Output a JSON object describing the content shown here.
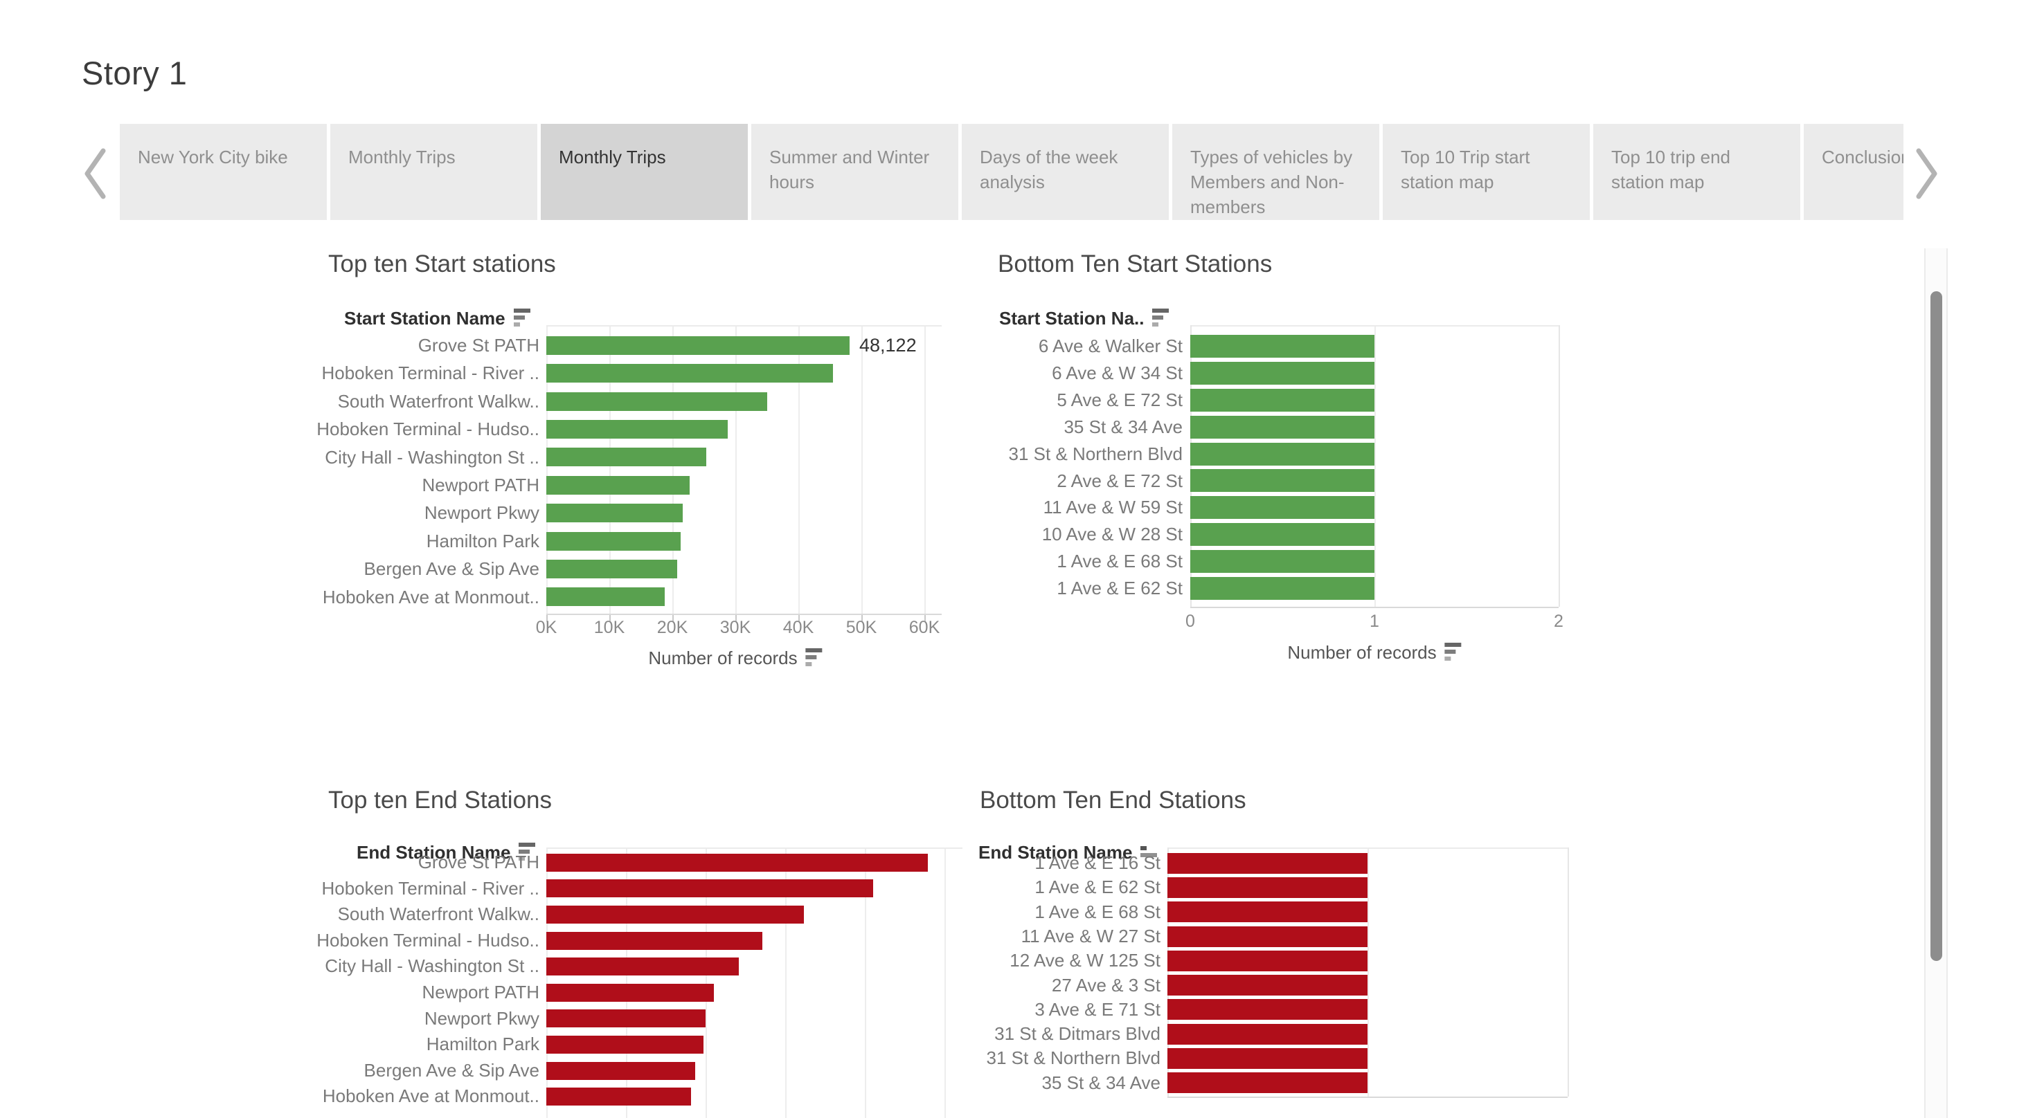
{
  "page": {
    "title": "Story 1"
  },
  "nav": {
    "prev_icon": "chevron-left",
    "next_icon": "chevron-right",
    "tabs": [
      {
        "label": "New York City bike",
        "selected": false
      },
      {
        "label": "Monthly Trips",
        "selected": false
      },
      {
        "label": "Monthly Trips",
        "selected": true
      },
      {
        "label": "Summer and Winter hours",
        "selected": false
      },
      {
        "label": "Days of the week analysis",
        "selected": false
      },
      {
        "label": "Types of vehicles by Members and Non-members",
        "selected": false
      },
      {
        "label": "Top 10 Trip start station map",
        "selected": false
      },
      {
        "label": "Top 10 trip end station map",
        "selected": false
      },
      {
        "label": "Conclusion",
        "selected": false
      }
    ]
  },
  "colors": {
    "green": "#59a14f",
    "red": "#b00e1a",
    "tab_bg": "#ebebeb",
    "tab_selected_bg": "#d4d4d4"
  },
  "chart_data": [
    {
      "type": "bar",
      "orientation": "horizontal",
      "title": "Top ten Start stations",
      "column_header": "Start Station Name",
      "header_sort_icon": "sort-descending",
      "categories": [
        "Grove St PATH",
        "Hoboken Terminal - River ..",
        "South Waterfront Walkw..",
        "Hoboken Terminal - Hudso..",
        "City Hall - Washington St ..",
        "Newport PATH",
        "Newport Pkwy",
        "Hamilton Park",
        "Bergen Ave & Sip Ave",
        "Hoboken Ave at Monmout.."
      ],
      "values": [
        48122,
        45500,
        35000,
        28800,
        25400,
        22700,
        21700,
        21300,
        20800,
        18800
      ],
      "value_labels": [
        "48,122",
        "",
        "",
        "",
        "",
        "",
        "",
        "",
        "",
        ""
      ],
      "xlabel": "Number of records",
      "xlabel_sort_icon": "sort-descending",
      "x_ticks": [
        "0K",
        "10K",
        "20K",
        "30K",
        "40K",
        "50K",
        "60K"
      ],
      "xlim": [
        0,
        60000
      ],
      "grid": true,
      "bar_color": "#59a14f"
    },
    {
      "type": "bar",
      "orientation": "horizontal",
      "title": "Bottom Ten Start Stations",
      "column_header": "Start Station Na..",
      "header_sort_icon": "sort-descending",
      "categories": [
        "6 Ave & Walker St",
        "6 Ave & W 34 St",
        "5 Ave & E 72 St",
        "35 St & 34 Ave",
        "31 St & Northern Blvd",
        "2 Ave & E 72 St",
        "11 Ave & W 59 St",
        "10 Ave & W 28 St",
        "1 Ave & E 68 St",
        "1 Ave & E 62 St"
      ],
      "values": [
        1,
        1,
        1,
        1,
        1,
        1,
        1,
        1,
        1,
        1
      ],
      "value_labels": [
        "",
        "",
        "",
        "",
        "",
        "",
        "",
        "",
        "",
        ""
      ],
      "xlabel": "Number of records",
      "xlabel_sort_icon": "sort-descending",
      "x_ticks": [
        "0",
        "1",
        "2"
      ],
      "xlim": [
        0,
        2
      ],
      "grid": true,
      "bar_color": "#59a14f"
    },
    {
      "type": "bar",
      "orientation": "horizontal",
      "title": "Top ten End Stations",
      "column_header": "End Station Name",
      "header_sort_icon": "sort-descending",
      "categories": [
        "Grove St PATH",
        "Hoboken Terminal - River ..",
        "South Waterfront Walkw..",
        "Hoboken Terminal - Hudso..",
        "City Hall - Washington St ..",
        "Newport PATH",
        "Newport Pkwy",
        "Hamilton Park",
        "Bergen Ave & Sip Ave",
        "Hoboken Ave at Monmout.."
      ],
      "values": [
        48000,
        41100,
        32400,
        27200,
        24200,
        21100,
        20000,
        19800,
        18700,
        18200
      ],
      "value_labels": [
        "",
        "",
        "",
        "",
        "",
        "",
        "",
        "",
        "",
        ""
      ],
      "xlabel": "",
      "x_ticks": [],
      "xlim": [
        0,
        52000
      ],
      "grid": true,
      "axis_visible": false,
      "bar_color": "#b00e1a"
    },
    {
      "type": "bar",
      "orientation": "horizontal",
      "title": "Bottom Ten End Stations",
      "column_header": "End Station Name",
      "header_sort_icon": "sort-ascending",
      "categories": [
        "1 Ave & E 16 St",
        "1 Ave & E 62 St",
        "1 Ave & E 68 St",
        "11 Ave & W 27 St",
        "12 Ave & W 125 St",
        "27 Ave & 3 St",
        "3 Ave & E 71 St",
        "31 St & Ditmars Blvd",
        "31 St & Northern Blvd",
        "35 St & 34 Ave"
      ],
      "values": [
        1,
        1,
        1,
        1,
        1,
        1,
        1,
        1,
        1,
        1
      ],
      "value_labels": [
        "",
        "",
        "",
        "",
        "",
        "",
        "",
        "",
        "",
        ""
      ],
      "xlabel": "",
      "x_ticks": [],
      "xlim": [
        0,
        2
      ],
      "grid": true,
      "axis_visible": false,
      "bar_color": "#b00e1a"
    }
  ]
}
